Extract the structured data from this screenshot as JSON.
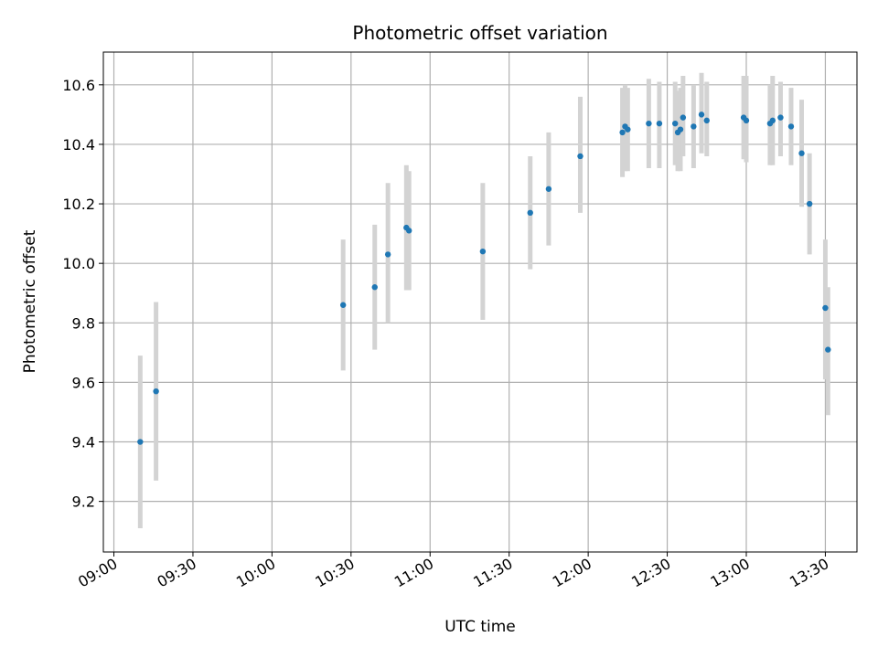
{
  "chart_data": {
    "type": "scatter",
    "title": "Photometric offset variation",
    "xlabel": "UTC time",
    "ylabel": "Photometric offset",
    "x_tick_labels": [
      "09:00",
      "09:30",
      "10:00",
      "10:30",
      "11:00",
      "11:30",
      "12:00",
      "12:30",
      "13:00",
      "13:30"
    ],
    "y_tick_labels": [
      "9.2",
      "9.4",
      "9.6",
      "9.8",
      "10.0",
      "10.2",
      "10.4",
      "10.6"
    ],
    "xlim": [
      "08:56",
      "13:42"
    ],
    "ylim": [
      9.03,
      10.71
    ],
    "grid": true,
    "colors": {
      "marker": "#1f77b4",
      "errorbar": "#d3d3d3",
      "grid": "#b0b0b0"
    },
    "points": [
      {
        "time": "09:10",
        "y": 9.4,
        "lo": 9.11,
        "hi": 9.69
      },
      {
        "time": "09:16",
        "y": 9.57,
        "lo": 9.27,
        "hi": 9.87
      },
      {
        "time": "10:27",
        "y": 9.86,
        "lo": 9.64,
        "hi": 10.08
      },
      {
        "time": "10:39",
        "y": 9.92,
        "lo": 9.71,
        "hi": 10.13
      },
      {
        "time": "10:44",
        "y": 10.03,
        "lo": 9.8,
        "hi": 10.27
      },
      {
        "time": "10:51",
        "y": 10.12,
        "lo": 9.91,
        "hi": 10.33
      },
      {
        "time": "10:52",
        "y": 10.11,
        "lo": 9.91,
        "hi": 10.31
      },
      {
        "time": "11:20",
        "y": 10.04,
        "lo": 9.81,
        "hi": 10.27
      },
      {
        "time": "11:38",
        "y": 10.17,
        "lo": 9.98,
        "hi": 10.36
      },
      {
        "time": "11:45",
        "y": 10.25,
        "lo": 10.06,
        "hi": 10.44
      },
      {
        "time": "11:57",
        "y": 10.36,
        "lo": 10.17,
        "hi": 10.56
      },
      {
        "time": "12:13",
        "y": 10.44,
        "lo": 10.29,
        "hi": 10.59
      },
      {
        "time": "12:14",
        "y": 10.46,
        "lo": 10.31,
        "hi": 10.6
      },
      {
        "time": "12:15",
        "y": 10.45,
        "lo": 10.31,
        "hi": 10.59
      },
      {
        "time": "12:23",
        "y": 10.47,
        "lo": 10.32,
        "hi": 10.62
      },
      {
        "time": "12:27",
        "y": 10.47,
        "lo": 10.32,
        "hi": 10.61
      },
      {
        "time": "12:33",
        "y": 10.47,
        "lo": 10.33,
        "hi": 10.61
      },
      {
        "time": "12:34",
        "y": 10.44,
        "lo": 10.31,
        "hi": 10.58
      },
      {
        "time": "12:35",
        "y": 10.45,
        "lo": 10.31,
        "hi": 10.59
      },
      {
        "time": "12:36",
        "y": 10.49,
        "lo": 10.36,
        "hi": 10.63
      },
      {
        "time": "12:40",
        "y": 10.46,
        "lo": 10.32,
        "hi": 10.6
      },
      {
        "time": "12:43",
        "y": 10.5,
        "lo": 10.37,
        "hi": 10.64
      },
      {
        "time": "12:45",
        "y": 10.48,
        "lo": 10.36,
        "hi": 10.61
      },
      {
        "time": "12:59",
        "y": 10.49,
        "lo": 10.35,
        "hi": 10.63
      },
      {
        "time": "13:00",
        "y": 10.48,
        "lo": 10.34,
        "hi": 10.63
      },
      {
        "time": "13:09",
        "y": 10.47,
        "lo": 10.33,
        "hi": 10.6
      },
      {
        "time": "13:10",
        "y": 10.48,
        "lo": 10.33,
        "hi": 10.63
      },
      {
        "time": "13:13",
        "y": 10.49,
        "lo": 10.36,
        "hi": 10.61
      },
      {
        "time": "13:17",
        "y": 10.46,
        "lo": 10.33,
        "hi": 10.59
      },
      {
        "time": "13:21",
        "y": 10.37,
        "lo": 10.19,
        "hi": 10.55
      },
      {
        "time": "13:24",
        "y": 10.2,
        "lo": 10.03,
        "hi": 10.37
      },
      {
        "time": "13:30",
        "y": 9.85,
        "lo": 9.61,
        "hi": 10.08
      },
      {
        "time": "13:31",
        "y": 9.71,
        "lo": 9.49,
        "hi": 9.92
      }
    ]
  }
}
